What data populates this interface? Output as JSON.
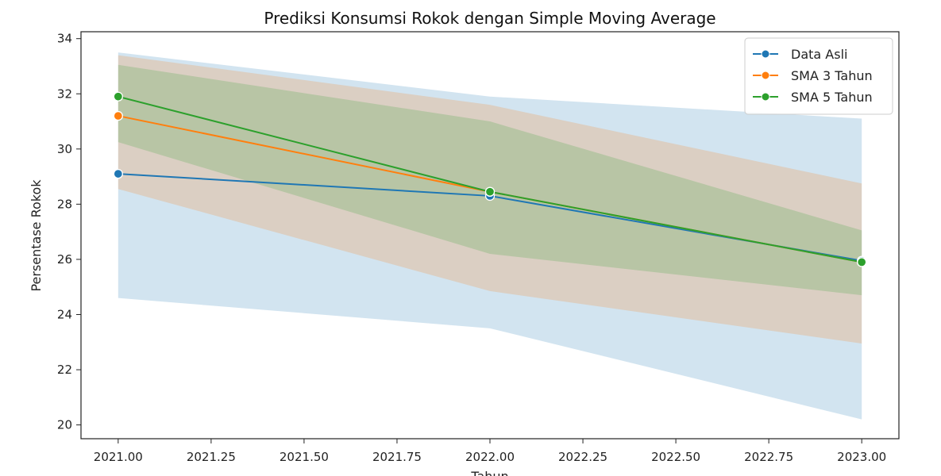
{
  "chart_data": {
    "type": "line",
    "title": "Prediksi Konsumsi Rokok dengan Simple Moving Average",
    "xlabel": "Tahun",
    "ylabel": "Persentase Rokok",
    "xlim": [
      2020.9,
      2023.1
    ],
    "ylim": [
      19.5,
      34.25
    ],
    "xticks": [
      2021.0,
      2021.25,
      2021.5,
      2021.75,
      2022.0,
      2022.25,
      2022.5,
      2022.75,
      2023.0
    ],
    "xtick_labels": [
      "2021.00",
      "2021.25",
      "2021.50",
      "2021.75",
      "2022.00",
      "2022.25",
      "2022.50",
      "2022.75",
      "2023.00"
    ],
    "yticks": [
      20,
      22,
      24,
      26,
      28,
      30,
      32,
      34
    ],
    "ytick_labels": [
      "20",
      "22",
      "24",
      "26",
      "28",
      "30",
      "32",
      "34"
    ],
    "grid": false,
    "legend_position": "top-right",
    "series": [
      {
        "name": "Data Asli",
        "color": "#1f77b4",
        "x": [
          2021,
          2022,
          2023
        ],
        "y": [
          29.1,
          28.3,
          25.95
        ],
        "band_low": [
          24.6,
          23.5,
          20.2
        ],
        "band_high": [
          33.5,
          31.9,
          31.1
        ]
      },
      {
        "name": "SMA 3 Tahun",
        "color": "#ff7f0e",
        "x": [
          2021,
          2022,
          2023
        ],
        "y": [
          31.2,
          28.45,
          25.9
        ],
        "band_low": [
          28.55,
          24.85,
          22.95
        ],
        "band_high": [
          33.4,
          31.6,
          28.75
        ]
      },
      {
        "name": "SMA 5 Tahun",
        "color": "#2ca02c",
        "x": [
          2021,
          2022,
          2023
        ],
        "y": [
          31.9,
          28.45,
          25.9
        ],
        "band_low": [
          30.25,
          26.2,
          24.7
        ],
        "band_high": [
          33.05,
          31.0,
          27.05
        ]
      }
    ]
  }
}
